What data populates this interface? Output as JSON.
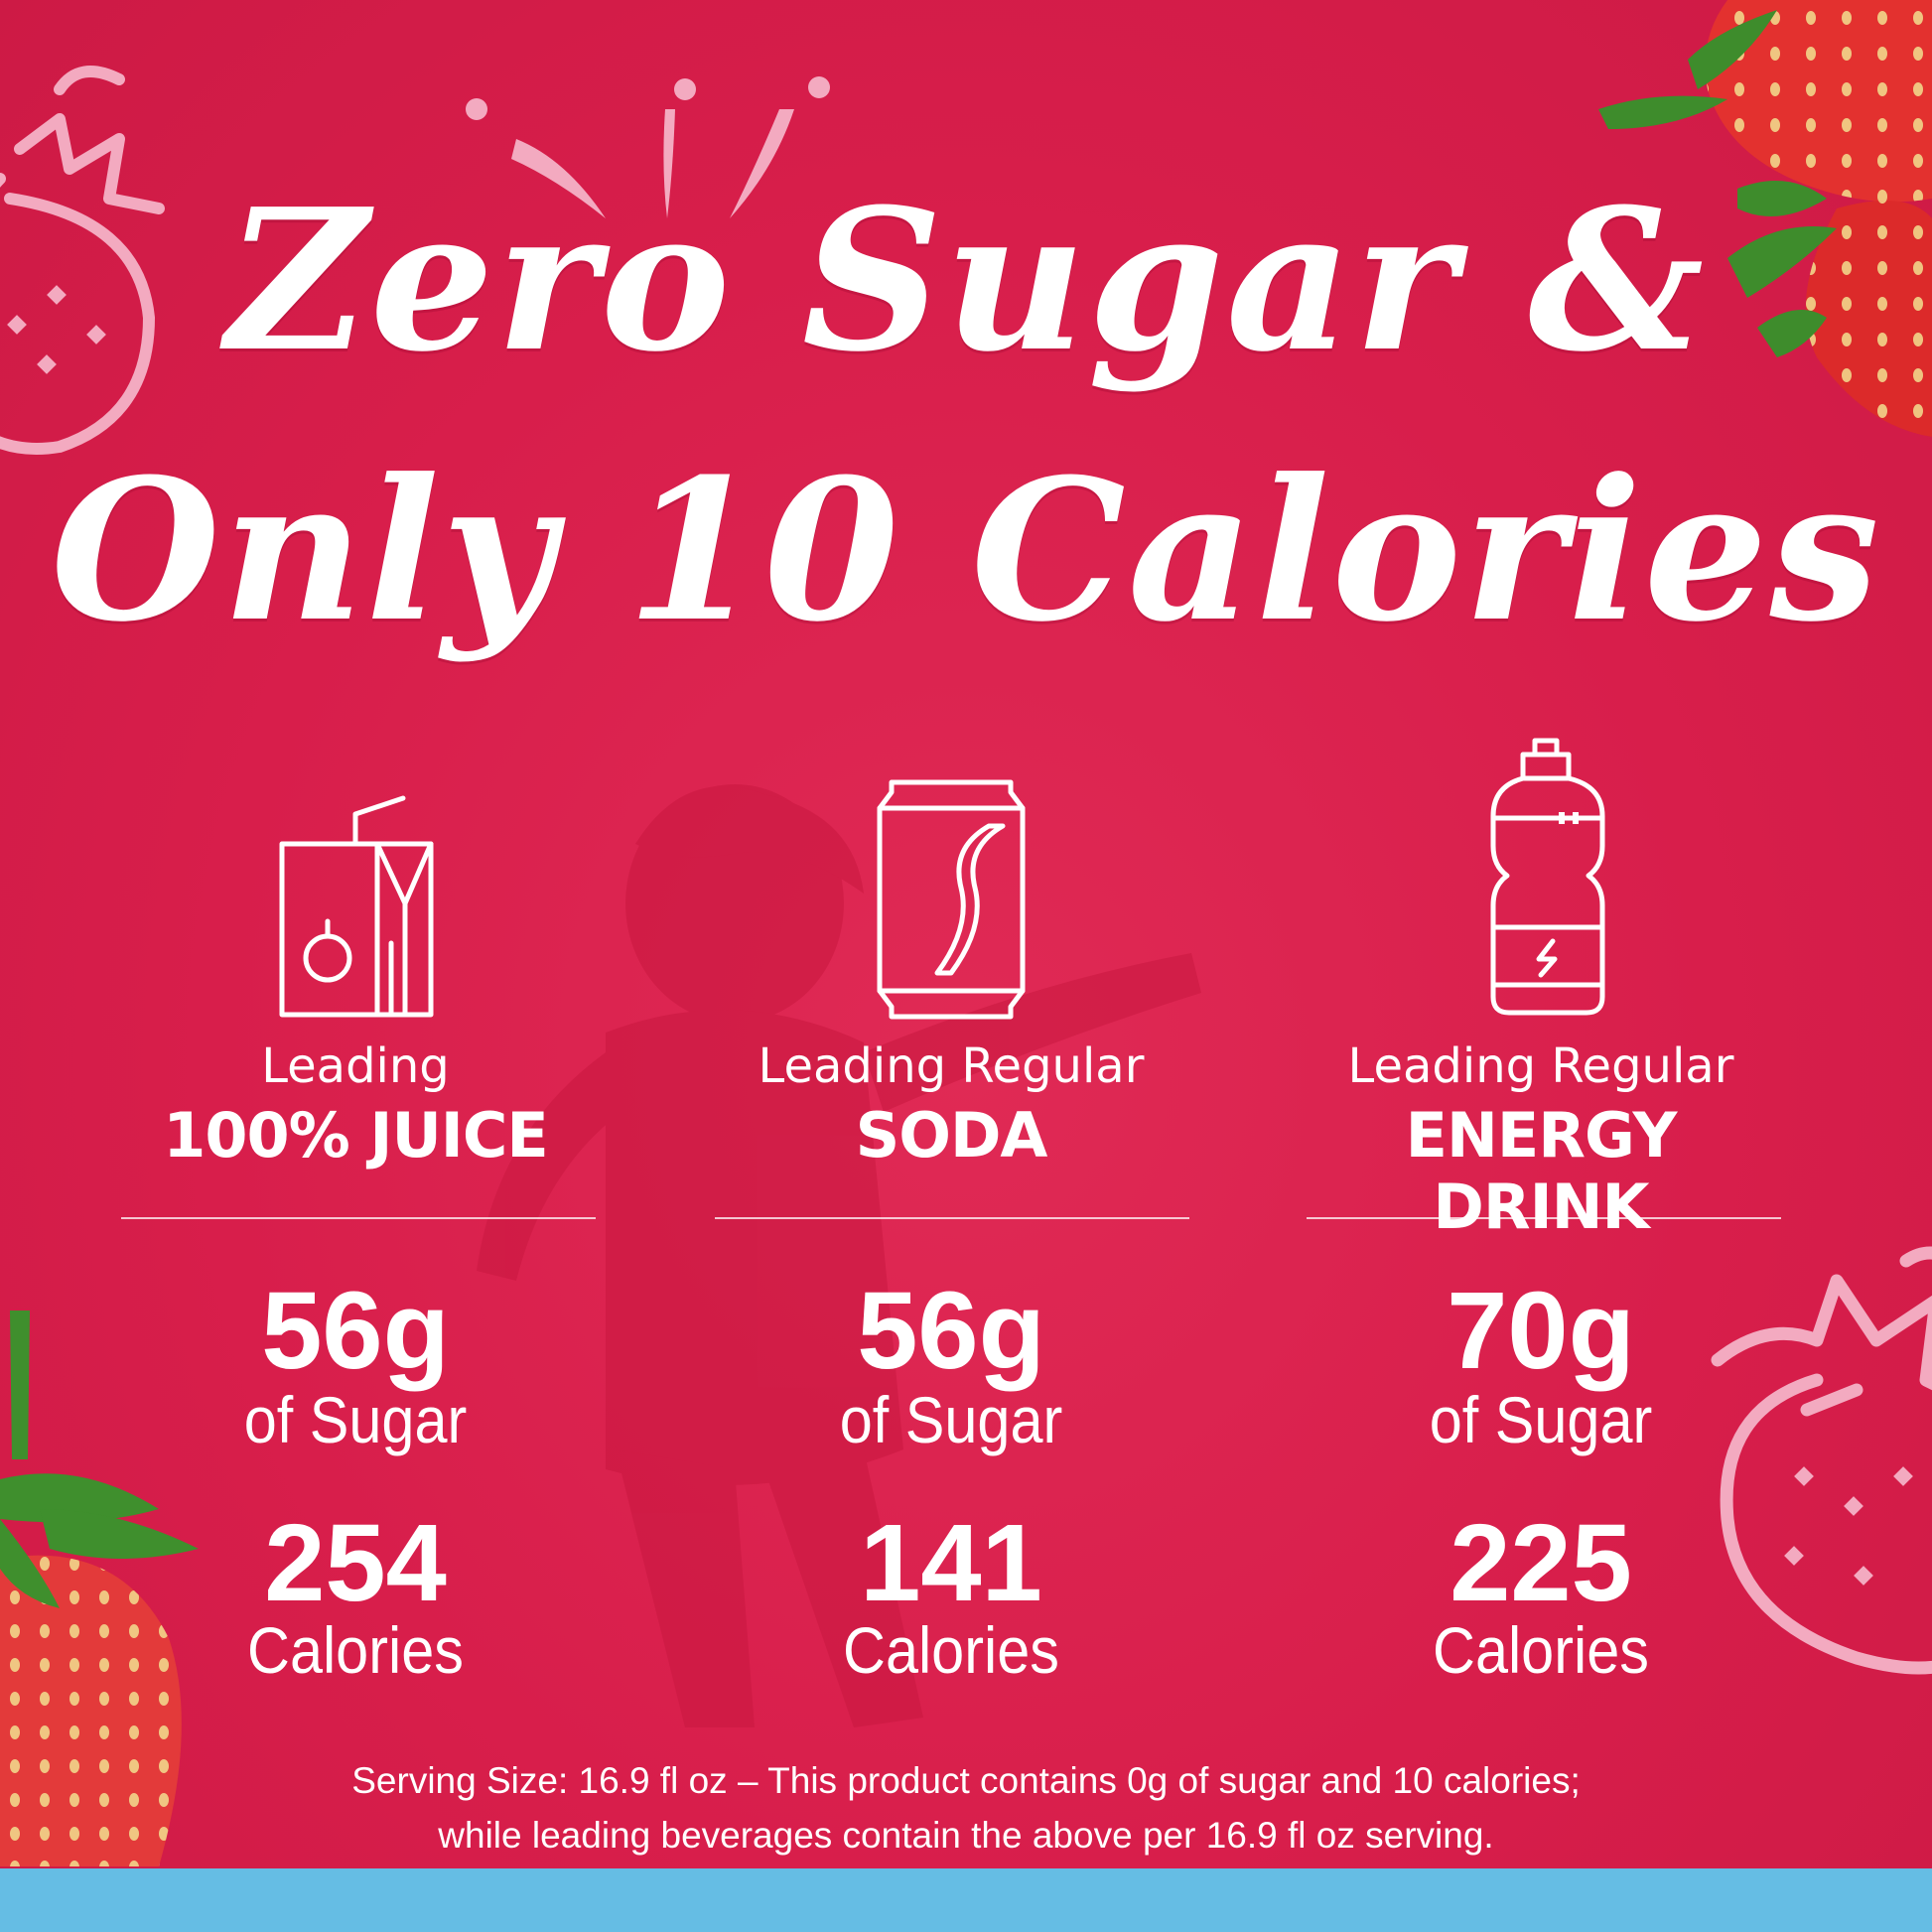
{
  "headline": {
    "line1": "Zero Sugar &",
    "line2": "Only 10 Calories"
  },
  "colors": {
    "background": "#d81f4c",
    "text": "#ffffff",
    "outline_strawberry": "#f3aac0",
    "bottom_band": "#65bde4"
  },
  "comparisons": [
    {
      "icon": "juice-box-icon",
      "lead": "Leading",
      "category": "100% JUICE",
      "sugar_value": "56g",
      "sugar_label": "of Sugar",
      "calorie_value": "254",
      "calorie_label": "Calories"
    },
    {
      "icon": "soda-can-icon",
      "lead": "Leading Regular",
      "category": "SODA",
      "sugar_value": "56g",
      "sugar_label": "of Sugar",
      "calorie_value": "141",
      "calorie_label": "Calories"
    },
    {
      "icon": "sports-bottle-icon",
      "lead": "Leading Regular",
      "category": "ENERGY DRINK",
      "sugar_value": "70g",
      "sugar_label": "of Sugar",
      "calorie_value": "225",
      "calorie_label": "Calories"
    }
  ],
  "footnote": {
    "line1": "Serving Size: 16.9 fl oz – This product contains 0g of sugar and 10 calories;",
    "line2": "while leading beverages contain the above per 16.9 fl oz serving."
  }
}
